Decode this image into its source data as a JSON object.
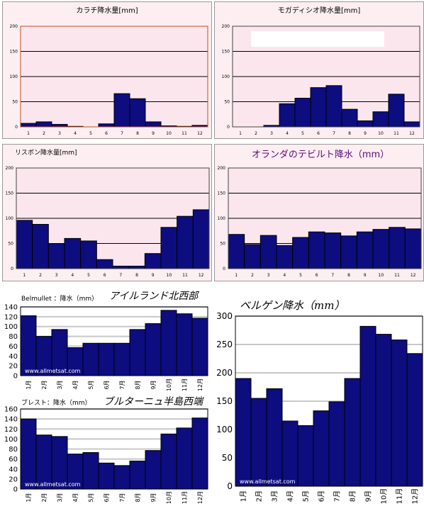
{
  "chart_data": [
    {
      "id": "karachi",
      "type": "bar",
      "title": "カラチ降水量[mm]",
      "categories": [
        "1",
        "2",
        "3",
        "4",
        "5",
        "6",
        "7",
        "8",
        "9",
        "10",
        "11",
        "12"
      ],
      "values": [
        7,
        10,
        5,
        1,
        0,
        6,
        66,
        56,
        10,
        2,
        1,
        3
      ],
      "ylim": [
        0,
        200
      ],
      "yticks": [
        "0",
        "50",
        "100",
        "150",
        "200"
      ],
      "grid": true
    },
    {
      "id": "mogadishu",
      "type": "bar",
      "title": "モガディシオ降水量[mm]",
      "categories": [
        "1",
        "2",
        "3",
        "4",
        "5",
        "6",
        "7",
        "8",
        "9",
        "10",
        "11",
        "12"
      ],
      "values": [
        0,
        0,
        3,
        46,
        57,
        78,
        82,
        35,
        12,
        30,
        65,
        10
      ],
      "ylim": [
        0,
        200
      ],
      "yticks": [
        "0",
        "50",
        "100",
        "150",
        "200"
      ],
      "grid": true
    },
    {
      "id": "lisbon",
      "type": "bar",
      "title": "リスボン降水量[mm]",
      "categories": [
        "1",
        "2",
        "3",
        "4",
        "5",
        "6",
        "7",
        "8",
        "9",
        "10",
        "11",
        "12"
      ],
      "values": [
        96,
        88,
        50,
        60,
        55,
        18,
        5,
        5,
        30,
        82,
        104,
        117
      ],
      "ylim": [
        0,
        200
      ],
      "yticks": [
        "0",
        "50",
        "100",
        "150",
        "200"
      ],
      "grid": true
    },
    {
      "id": "de-bilt",
      "type": "bar",
      "title": "オランダのテビルト降水（mm）",
      "categories": [
        "1",
        "2",
        "3",
        "4",
        "5",
        "6",
        "7",
        "8",
        "9",
        "10",
        "11",
        "12"
      ],
      "values": [
        68,
        48,
        66,
        46,
        62,
        73,
        71,
        65,
        73,
        78,
        82,
        79
      ],
      "ylim": [
        0,
        200
      ],
      "yticks": [
        "0",
        "50",
        "100",
        "150",
        "200"
      ],
      "grid": true
    },
    {
      "id": "belmullet",
      "type": "bar",
      "title": "アイルランド北西部",
      "prefix": "Belmullet ：降水（mm）",
      "categories": [
        "1月",
        "2月",
        "3月",
        "4月",
        "5月",
        "6月",
        "7月",
        "8月",
        "9月",
        "10月",
        "11月",
        "12月"
      ],
      "values": [
        122,
        80,
        94,
        57,
        66,
        66,
        66,
        94,
        106,
        133,
        126,
        117
      ],
      "ylim": [
        0,
        140
      ],
      "yticks": [
        "0",
        "20",
        "40",
        "60",
        "80",
        "100",
        "120",
        "140"
      ],
      "watermark": "www.allmetsat.com",
      "grid": true
    },
    {
      "id": "brest",
      "type": "bar",
      "title": "ブルターニュ半島西端",
      "prefix": "ブレスト：降水（mm）",
      "categories": [
        "1月",
        "2月",
        "3月",
        "4月",
        "5月",
        "6月",
        "7月",
        "8月",
        "9月",
        "10月",
        "11月",
        "12月"
      ],
      "values": [
        140,
        108,
        105,
        70,
        73,
        52,
        47,
        56,
        77,
        110,
        122,
        142
      ],
      "ylim": [
        0,
        160
      ],
      "yticks": [
        "0",
        "20",
        "40",
        "60",
        "80",
        "100",
        "120",
        "140",
        "160"
      ],
      "watermark": "www.allmetsat.com",
      "grid": true
    },
    {
      "id": "bergen",
      "type": "bar",
      "title": "ベルゲン降水（mm）",
      "categories": [
        "1月",
        "2月",
        "3月",
        "4月",
        "5月",
        "6月",
        "7月",
        "8月",
        "9月",
        "10月",
        "11月",
        "12月"
      ],
      "values": [
        190,
        155,
        172,
        115,
        107,
        133,
        149,
        190,
        282,
        268,
        258,
        234
      ],
      "ylim": [
        0,
        300
      ],
      "yticks": [
        "0",
        "50",
        "100",
        "150",
        "200",
        "250",
        "300"
      ],
      "watermark": "www.allmetsat.com",
      "grid": true
    }
  ],
  "colors": {
    "bar_fill": "#0d0d80",
    "bar_stroke": "#000000",
    "plot_pink": "#fce6ee",
    "panel_pink": "#fdeef2",
    "panel_border": "#999999",
    "karachi_frame": "#c05020",
    "title_purple": "#5a0a78",
    "grid_dark": "#000000",
    "grid_light": "#c8c8c8",
    "watermark": "#ffffff"
  }
}
